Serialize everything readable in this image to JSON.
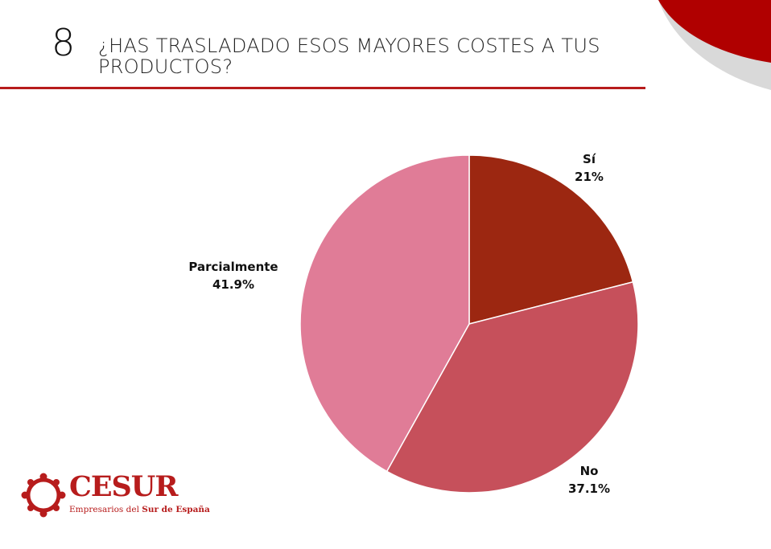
{
  "header": {
    "number": "8",
    "title": "¿HAS TRASLADADO ESOS MAYORES COSTES A TUS PRODUCTOS?"
  },
  "colors": {
    "accent": "#b71c1c",
    "corner_gray": "#d9d9d9",
    "text": "#111111"
  },
  "chart_data": {
    "type": "pie",
    "categories": [
      "Sí",
      "No",
      "Parcialmente"
    ],
    "values": [
      21,
      37.1,
      41.9
    ],
    "value_labels": [
      "21%",
      "37.1%",
      "41.9%"
    ],
    "colors": [
      "#9c2711",
      "#c6505b",
      "#e07c97"
    ],
    "start_angle_deg": 0,
    "direction": "clockwise"
  },
  "logo": {
    "name": "CESUR",
    "tagline_prefix": "Empresarios del ",
    "tagline_bold": "Sur de España"
  }
}
